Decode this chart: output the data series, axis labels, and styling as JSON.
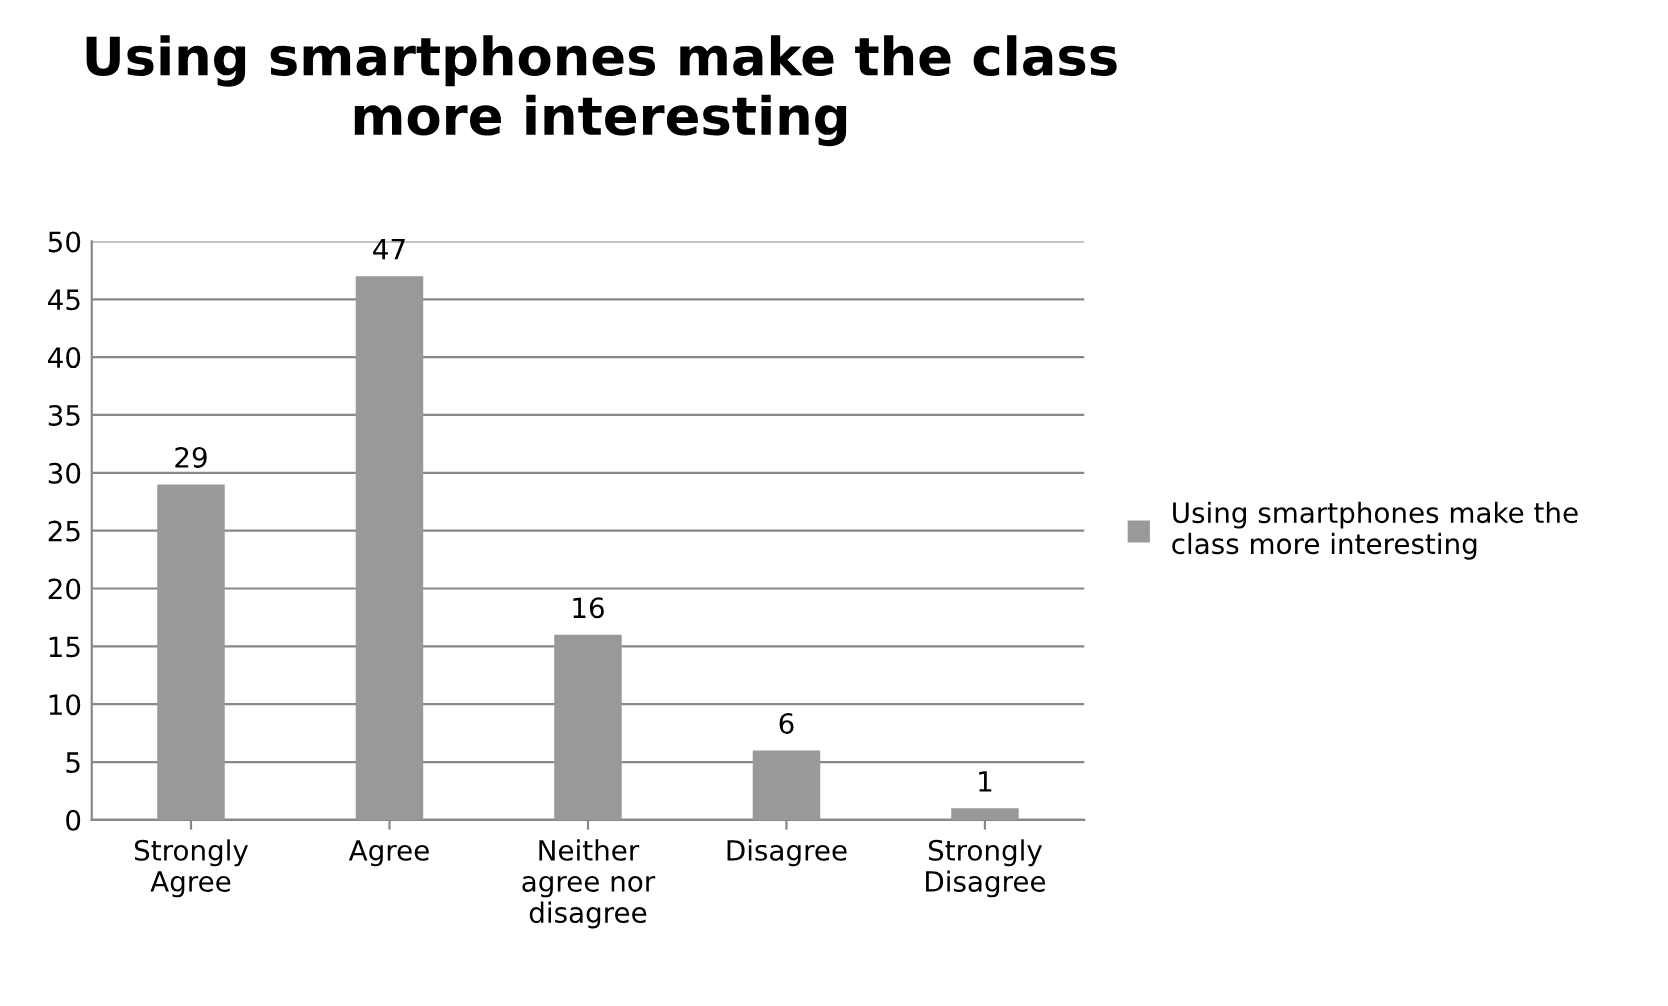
{
  "chart_data": {
    "type": "bar",
    "title": "Using smartphones make the class more interesting",
    "categories": [
      "Strongly Agree",
      "Agree",
      "Neither agree nor disagree",
      "Disagree",
      "Strongly Disagree"
    ],
    "series": [
      {
        "name": "Using smartphones make the class more interesting",
        "color": "#999999",
        "values": [
          29,
          47,
          16,
          6,
          1
        ]
      }
    ],
    "ylim": [
      0,
      50
    ],
    "yticks": [
      0,
      5,
      10,
      15,
      20,
      25,
      30,
      35,
      40,
      45,
      50
    ],
    "grid": "y",
    "legend": "right",
    "data_labels": true
  }
}
